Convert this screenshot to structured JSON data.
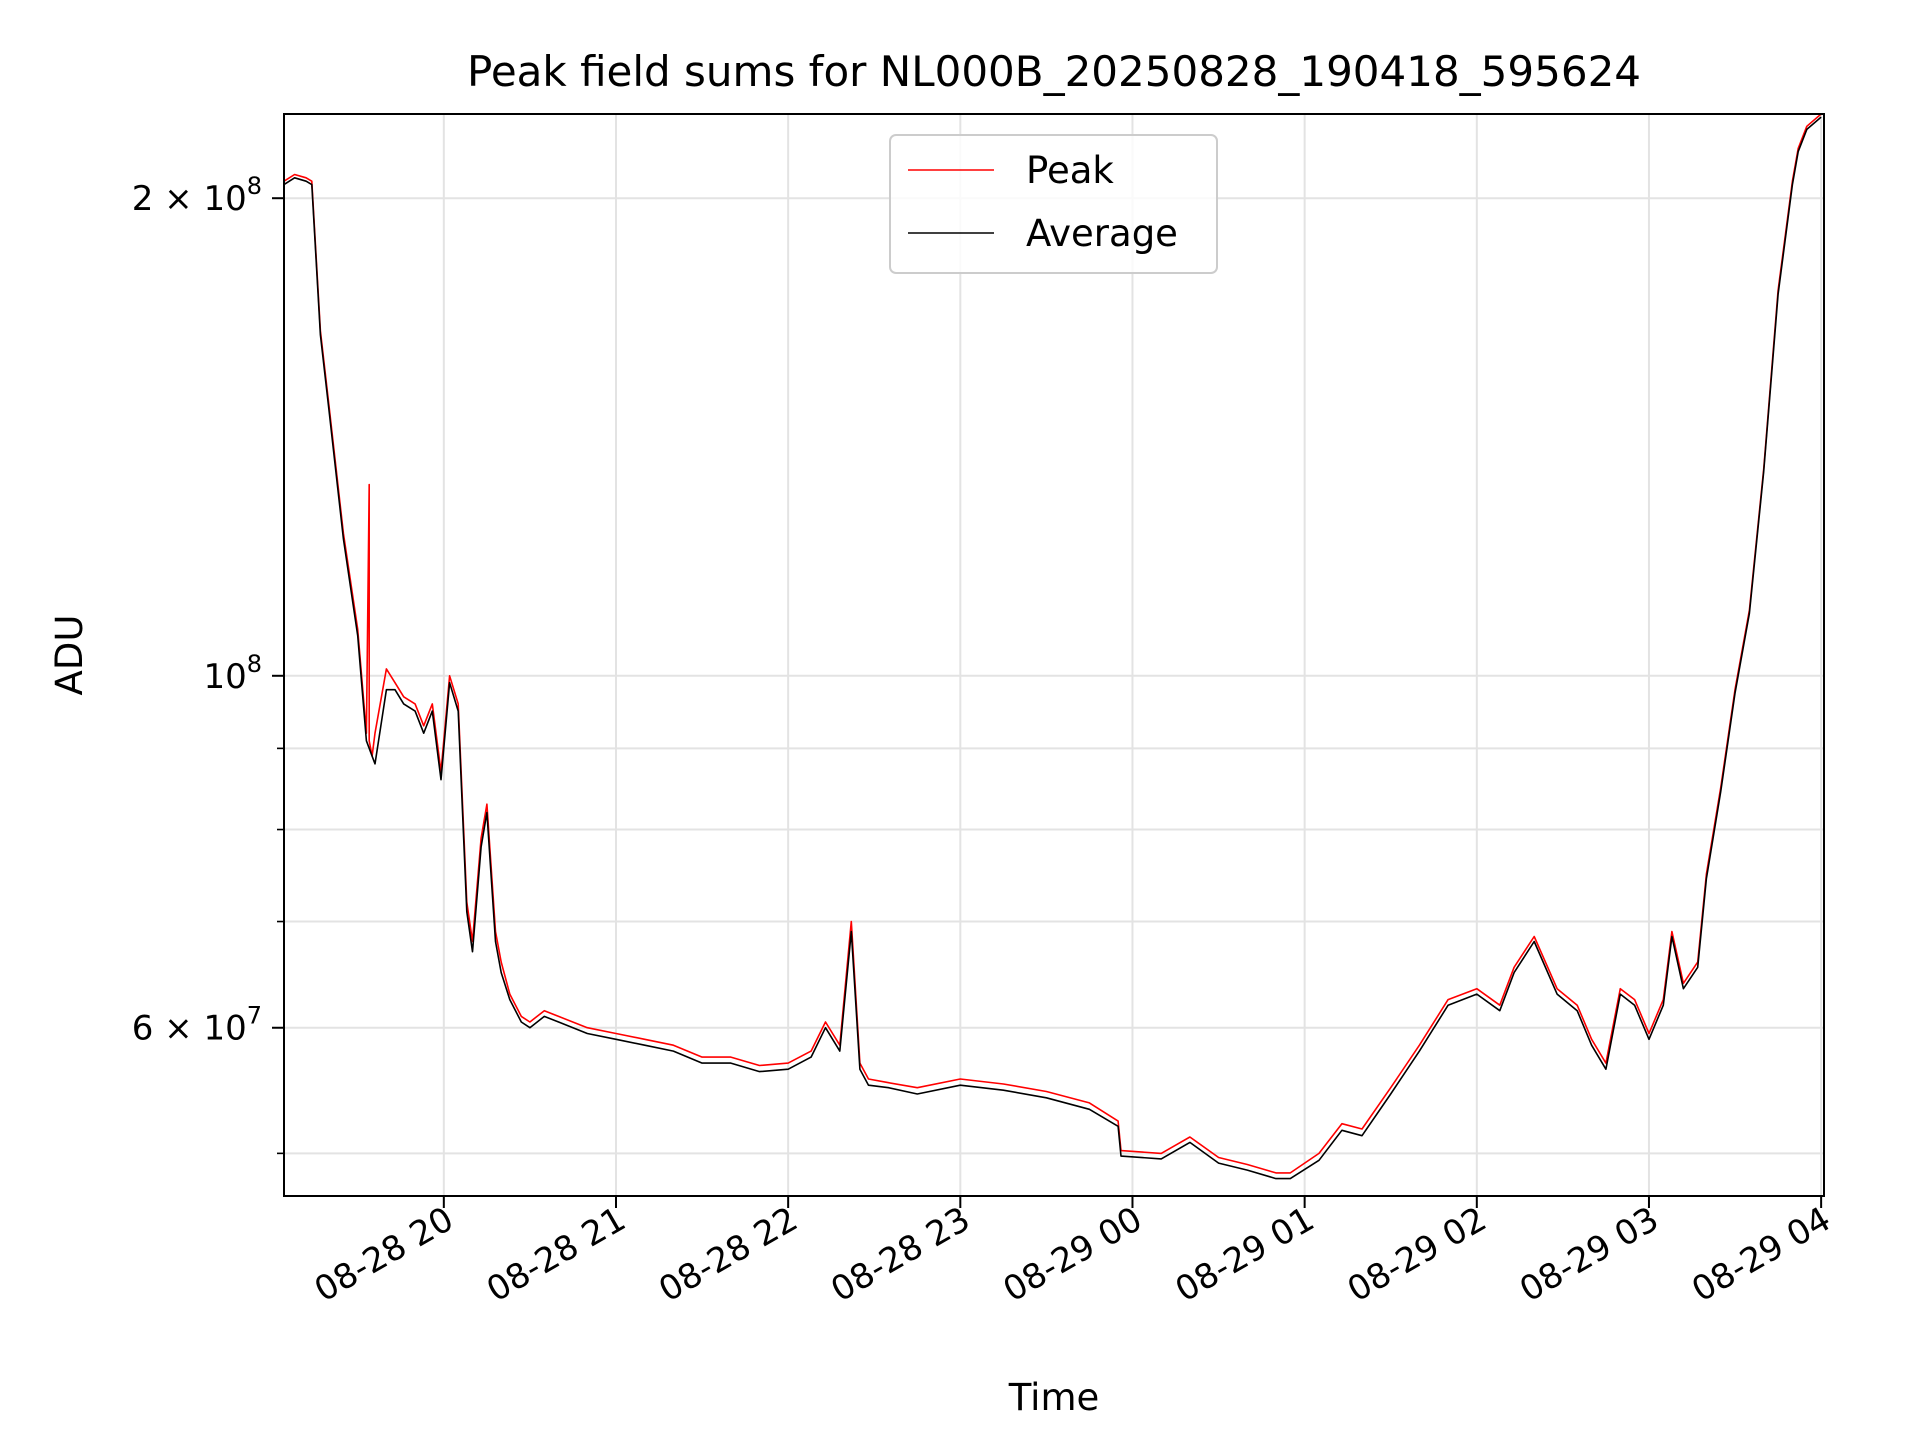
{
  "chart_data": {
    "type": "line",
    "title": "Peak field sums for NL000B_20250828_190418_595624",
    "xlabel": "Time",
    "ylabel": "ADU",
    "y_scale": "log",
    "ylim": [
      47000000,
      226000000
    ],
    "xlim": [
      "2025-08-28 19:04:18",
      "2025-08-29 04:01:00"
    ],
    "grid": true,
    "legend": "upper center",
    "x_ticks": [
      {
        "t": "2025-08-28 20:00",
        "label": "08-28 20"
      },
      {
        "t": "2025-08-28 21:00",
        "label": "08-28 21"
      },
      {
        "t": "2025-08-28 22:00",
        "label": "08-28 22"
      },
      {
        "t": "2025-08-28 23:00",
        "label": "08-28 23"
      },
      {
        "t": "2025-08-29 00:00",
        "label": "08-29 00"
      },
      {
        "t": "2025-08-29 01:00",
        "label": "08-29 01"
      },
      {
        "t": "2025-08-29 02:00",
        "label": "08-29 02"
      },
      {
        "t": "2025-08-29 03:00",
        "label": "08-29 03"
      },
      {
        "t": "2025-08-29 04:00",
        "label": "08-29 04"
      }
    ],
    "y_ticks": [
      {
        "v": 60000000,
        "base": "6 × 10",
        "exp": "7"
      },
      {
        "v": 100000000,
        "base": "10",
        "exp": "8"
      },
      {
        "v": 200000000,
        "base": "2 × 10",
        "exp": "8"
      }
    ],
    "y_minor_ticks": [
      50000000,
      70000000,
      80000000,
      90000000
    ],
    "series": [
      {
        "name": "Peak",
        "color": "#ff0000",
        "x": [
          "2025-08-28 19:04:18",
          "2025-08-28 19:08",
          "2025-08-28 19:12",
          "2025-08-28 19:14",
          "2025-08-28 19:17",
          "2025-08-28 19:20",
          "2025-08-28 19:25",
          "2025-08-28 19:30",
          "2025-08-28 19:33",
          "2025-08-28 19:34",
          "2025-08-28 19:34",
          "2025-08-28 19:35",
          "2025-08-28 19:36",
          "2025-08-28 19:40",
          "2025-08-28 19:43",
          "2025-08-28 19:46",
          "2025-08-28 19:50",
          "2025-08-28 19:53",
          "2025-08-28 19:56",
          "2025-08-28 19:59",
          "2025-08-28 20:02",
          "2025-08-28 20:05",
          "2025-08-28 20:08",
          "2025-08-28 20:10",
          "2025-08-28 20:13",
          "2025-08-28 20:15",
          "2025-08-28 20:18",
          "2025-08-28 20:20",
          "2025-08-28 20:23",
          "2025-08-28 20:27",
          "2025-08-28 20:30",
          "2025-08-28 20:35",
          "2025-08-28 20:40",
          "2025-08-28 20:50",
          "2025-08-28 21:00",
          "2025-08-28 21:10",
          "2025-08-28 21:20",
          "2025-08-28 21:30",
          "2025-08-28 21:40",
          "2025-08-28 21:50",
          "2025-08-28 22:00",
          "2025-08-28 22:08",
          "2025-08-28 22:13",
          "2025-08-28 22:18",
          "2025-08-28 22:22",
          "2025-08-28 22:25",
          "2025-08-28 22:28",
          "2025-08-28 22:35",
          "2025-08-28 22:45",
          "2025-08-28 23:00",
          "2025-08-28 23:15",
          "2025-08-28 23:30",
          "2025-08-28 23:45",
          "2025-08-28 23:55",
          "2025-08-28 23:56",
          "2025-08-29 00:10",
          "2025-08-29 00:20",
          "2025-08-29 00:30",
          "2025-08-29 00:40",
          "2025-08-29 00:50",
          "2025-08-29 00:55",
          "2025-08-29 01:05",
          "2025-08-29 01:13",
          "2025-08-29 01:20",
          "2025-08-29 01:30",
          "2025-08-29 01:40",
          "2025-08-29 01:50",
          "2025-08-29 02:00",
          "2025-08-29 02:08",
          "2025-08-29 02:13",
          "2025-08-29 02:20",
          "2025-08-29 02:28",
          "2025-08-29 02:35",
          "2025-08-29 02:40",
          "2025-08-29 02:45",
          "2025-08-29 02:50",
          "2025-08-29 02:55",
          "2025-08-29 03:00",
          "2025-08-29 03:05",
          "2025-08-29 03:08",
          "2025-08-29 03:12",
          "2025-08-29 03:17",
          "2025-08-29 03:20",
          "2025-08-29 03:25",
          "2025-08-29 03:30",
          "2025-08-29 03:35",
          "2025-08-29 03:40",
          "2025-08-29 03:45",
          "2025-08-29 03:50",
          "2025-08-29 03:52",
          "2025-08-29 03:55",
          "2025-08-29 04:00"
        ],
        "values": [
          205000000,
          207000000,
          206000000,
          205000000,
          165000000,
          148000000,
          123000000,
          107000000,
          92000000,
          132000000,
          91000000,
          89000000,
          92000000,
          101000000,
          99000000,
          97000000,
          96000000,
          93000000,
          96000000,
          87000000,
          100000000,
          96000000,
          72000000,
          68000000,
          79000000,
          83000000,
          69000000,
          66000000,
          63000000,
          61000000,
          60500000,
          61500000,
          61000000,
          60000000,
          59500000,
          59000000,
          58500000,
          57500000,
          57500000,
          56800000,
          57000000,
          58000000,
          60500000,
          58500000,
          70000000,
          57000000,
          55700000,
          55400000,
          55000000,
          55700000,
          55300000,
          54700000,
          53800000,
          52400000,
          50200000,
          50000000,
          51200000,
          49700000,
          49200000,
          48600000,
          48600000,
          50000000,
          52200000,
          51800000,
          55000000,
          58500000,
          62500000,
          63500000,
          62000000,
          65500000,
          68500000,
          63500000,
          62000000,
          59000000,
          57000000,
          63500000,
          62500000,
          59500000,
          62500000,
          69000000,
          64000000,
          66000000,
          75000000,
          85000000,
          98000000,
          110000000,
          135000000,
          175000000,
          205000000,
          215000000,
          222000000,
          226000000
        ]
      },
      {
        "name": "Average",
        "color": "#000000",
        "x": [
          "2025-08-28 19:04:18",
          "2025-08-28 19:08",
          "2025-08-28 19:12",
          "2025-08-28 19:14",
          "2025-08-28 19:17",
          "2025-08-28 19:20",
          "2025-08-28 19:25",
          "2025-08-28 19:30",
          "2025-08-28 19:33",
          "2025-08-28 19:36",
          "2025-08-28 19:40",
          "2025-08-28 19:43",
          "2025-08-28 19:46",
          "2025-08-28 19:50",
          "2025-08-28 19:53",
          "2025-08-28 19:56",
          "2025-08-28 19:59",
          "2025-08-28 20:02",
          "2025-08-28 20:05",
          "2025-08-28 20:08",
          "2025-08-28 20:10",
          "2025-08-28 20:13",
          "2025-08-28 20:15",
          "2025-08-28 20:18",
          "2025-08-28 20:20",
          "2025-08-28 20:23",
          "2025-08-28 20:27",
          "2025-08-28 20:30",
          "2025-08-28 20:35",
          "2025-08-28 20:40",
          "2025-08-28 20:50",
          "2025-08-28 21:00",
          "2025-08-28 21:10",
          "2025-08-28 21:20",
          "2025-08-28 21:30",
          "2025-08-28 21:40",
          "2025-08-28 21:50",
          "2025-08-28 22:00",
          "2025-08-28 22:08",
          "2025-08-28 22:13",
          "2025-08-28 22:18",
          "2025-08-28 22:22",
          "2025-08-28 22:25",
          "2025-08-28 22:28",
          "2025-08-28 22:35",
          "2025-08-28 22:45",
          "2025-08-28 23:00",
          "2025-08-28 23:15",
          "2025-08-28 23:30",
          "2025-08-28 23:45",
          "2025-08-28 23:55",
          "2025-08-28 23:56",
          "2025-08-29 00:10",
          "2025-08-29 00:20",
          "2025-08-29 00:30",
          "2025-08-29 00:40",
          "2025-08-29 00:50",
          "2025-08-29 00:55",
          "2025-08-29 01:05",
          "2025-08-29 01:13",
          "2025-08-29 01:20",
          "2025-08-29 01:30",
          "2025-08-29 01:40",
          "2025-08-29 01:50",
          "2025-08-29 02:00",
          "2025-08-29 02:08",
          "2025-08-29 02:13",
          "2025-08-29 02:20",
          "2025-08-29 02:28",
          "2025-08-29 02:35",
          "2025-08-29 02:40",
          "2025-08-29 02:45",
          "2025-08-29 02:50",
          "2025-08-29 02:55",
          "2025-08-29 03:00",
          "2025-08-29 03:05",
          "2025-08-29 03:08",
          "2025-08-29 03:12",
          "2025-08-29 03:17",
          "2025-08-29 03:20",
          "2025-08-29 03:25",
          "2025-08-29 03:30",
          "2025-08-29 03:35",
          "2025-08-29 03:40",
          "2025-08-29 03:45",
          "2025-08-29 03:50",
          "2025-08-29 03:52",
          "2025-08-29 03:55",
          "2025-08-29 04:00"
        ],
        "values": [
          204000000,
          206000000,
          205000000,
          204000000,
          164000000,
          147000000,
          122000000,
          106000000,
          91000000,
          88000000,
          98000000,
          98000000,
          96000000,
          95000000,
          92000000,
          95000000,
          86000000,
          99000000,
          95000000,
          71000000,
          67000000,
          78000000,
          82000000,
          68000000,
          65000000,
          62500000,
          60500000,
          60000000,
          61000000,
          60500000,
          59500000,
          59000000,
          58500000,
          58000000,
          57000000,
          57000000,
          56300000,
          56500000,
          57500000,
          60000000,
          58000000,
          69000000,
          56500000,
          55200000,
          55000000,
          54500000,
          55200000,
          54800000,
          54200000,
          53300000,
          52000000,
          49800000,
          49600000,
          50800000,
          49300000,
          48800000,
          48200000,
          48200000,
          49500000,
          51700000,
          51300000,
          54500000,
          58000000,
          62000000,
          63000000,
          61500000,
          65000000,
          68000000,
          63000000,
          61500000,
          58500000,
          56500000,
          63000000,
          62000000,
          59000000,
          62000000,
          68500000,
          63500000,
          65500000,
          74500000,
          84500000,
          97500000,
          109500000,
          134500000,
          174000000,
          204000000,
          214000000,
          221000000,
          225000000
        ]
      }
    ]
  }
}
